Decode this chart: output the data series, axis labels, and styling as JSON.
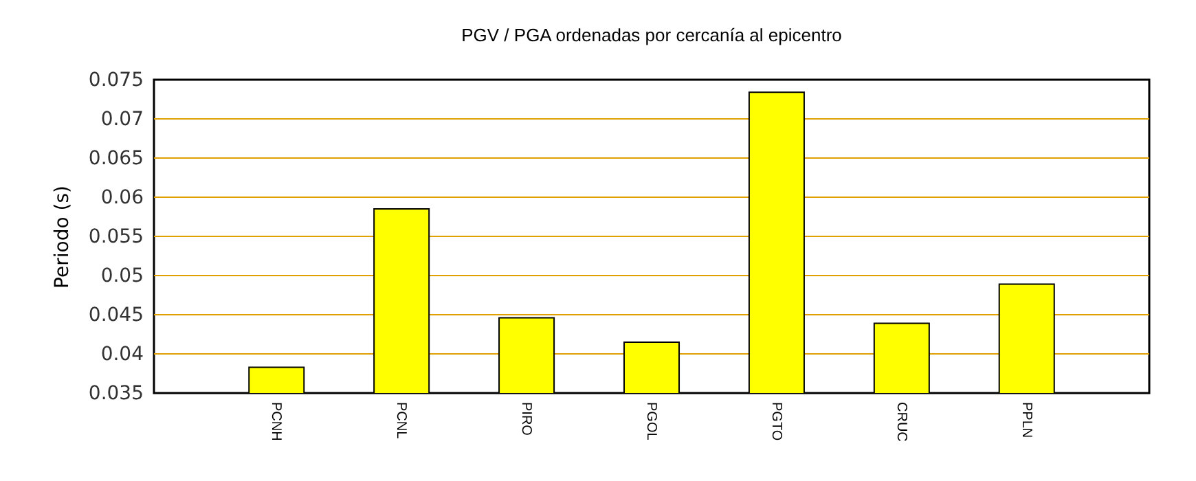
{
  "chart_data": {
    "type": "bar",
    "title": "PGV / PGA ordenadas por cercanía al epicentro",
    "ylabel": "Periodo (s)",
    "categories": [
      "PCNH",
      "PCNL",
      "PIRO",
      "PGOL",
      "PGTO",
      "CRUC",
      "PPLN"
    ],
    "values": [
      0.0383,
      0.0585,
      0.0446,
      0.0415,
      0.0734,
      0.0439,
      0.0489
    ],
    "color": "#ffff00",
    "ylim": [
      0.035,
      0.075
    ],
    "yticks": [
      0.035,
      0.04,
      0.045,
      0.05,
      0.055,
      0.06,
      0.065,
      0.07,
      0.075
    ],
    "grid": true
  }
}
